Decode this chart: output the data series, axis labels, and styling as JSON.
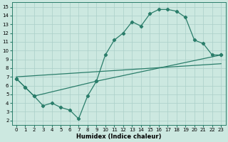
{
  "line_color": "#2a7d6a",
  "bg_color": "#cce8e0",
  "grid_color": "#aacfc8",
  "xlabel": "Humidex (Indice chaleur)",
  "xlim": [
    -0.5,
    23.5
  ],
  "ylim": [
    1.5,
    15.5
  ],
  "xticks": [
    0,
    1,
    2,
    3,
    4,
    5,
    6,
    7,
    8,
    9,
    10,
    11,
    12,
    13,
    14,
    15,
    16,
    17,
    18,
    19,
    20,
    21,
    22,
    23
  ],
  "yticks": [
    2,
    3,
    4,
    5,
    6,
    7,
    8,
    9,
    10,
    11,
    12,
    13,
    14,
    15
  ],
  "line1_x": [
    0,
    23
  ],
  "line1_y": [
    7.0,
    8.5
  ],
  "line2_x": [
    0,
    1,
    2,
    3,
    4,
    5,
    6,
    7,
    8,
    9,
    23
  ],
  "line2_y": [
    6.8,
    5.8,
    4.8,
    3.7,
    4.0,
    3.5,
    3.2,
    2.2,
    4.8,
    6.5,
    9.5
  ],
  "line3_x": [
    0,
    1,
    2,
    9,
    10,
    11,
    12,
    13,
    14,
    15,
    16,
    17,
    18,
    19,
    20,
    21,
    22,
    23
  ],
  "line3_y": [
    6.8,
    5.8,
    4.8,
    6.5,
    9.5,
    11.2,
    12.0,
    13.3,
    12.8,
    14.2,
    14.7,
    14.7,
    14.5,
    13.8,
    11.2,
    10.8,
    9.5,
    9.5
  ],
  "tick_fontsize": 5,
  "xlabel_fontsize": 6
}
